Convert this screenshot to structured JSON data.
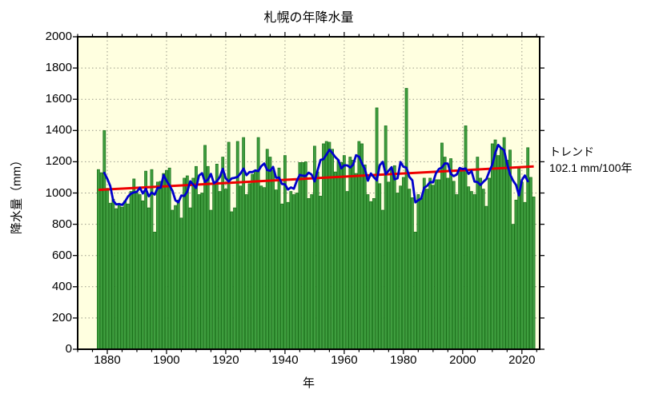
{
  "title": "札幌の年降水量",
  "chart_data": {
    "type": "bar",
    "title": "札幌の年降水量",
    "xlabel": "年",
    "ylabel": "降水量（mm）",
    "xlim": [
      1870,
      2026
    ],
    "ylim": [
      0,
      2000
    ],
    "y_ticks": [
      0,
      200,
      400,
      600,
      800,
      1000,
      1200,
      1400,
      1600,
      1800,
      2000
    ],
    "x_ticks": [
      1880,
      1900,
      1920,
      1940,
      1960,
      1980,
      2000,
      2020
    ],
    "x_minor_step": 5,
    "grid": true,
    "plot_bg": "#ffffe0",
    "x_start_year": 1877,
    "values": [
      1150,
      1130,
      1400,
      1030,
      935,
      960,
      900,
      930,
      910,
      950,
      930,
      1010,
      1090,
      1000,
      990,
      950,
      1140,
      905,
      1150,
      750,
      1070,
      1075,
      1125,
      1145,
      1160,
      890,
      920,
      955,
      840,
      1095,
      1110,
      905,
      1095,
      1170,
      990,
      1000,
      1305,
      1170,
      890,
      1060,
      1185,
      1010,
      1230,
      1025,
      1325,
      880,
      905,
      1330,
      1045,
      1355,
      990,
      1060,
      1120,
      1145,
      1355,
      1045,
      1035,
      1280,
      1230,
      1145,
      1020,
      1160,
      930,
      1240,
      940,
      1010,
      990,
      1000,
      1195,
      1195,
      1200,
      965,
      990,
      1300,
      1135,
      980,
      1315,
      1330,
      1325,
      1280,
      1135,
      1210,
      1195,
      1240,
      1010,
      1230,
      1210,
      1125,
      1330,
      1315,
      1180,
      990,
      945,
      965,
      1545,
      1060,
      890,
      1430,
      1070,
      1150,
      1175,
      1000,
      1045,
      1100,
      1670,
      1025,
      970,
      750,
      990,
      965,
      1095,
      1025,
      1095,
      1050,
      1085,
      1085,
      1320,
      1230,
      1095,
      1220,
      1075,
      990,
      1160,
      1145,
      1430,
      1040,
      1010,
      990,
      1230,
      1095,
      1025,
      915,
      1095,
      1315,
      1340,
      1240,
      1290,
      1355,
      1210,
      1275,
      800,
      955,
      1160,
      1070,
      940,
      1290,
      1100,
      975
    ],
    "series": [
      {
        "name": "annual-precipitation-bars",
        "type": "bar",
        "color": "#3f9e3f",
        "edge_color": "#1a701a"
      },
      {
        "name": "smoothed-5yr-moving-average",
        "type": "line",
        "color": "#0000cc",
        "derived": "moving-average",
        "window": 5
      },
      {
        "name": "linear-trend",
        "type": "line",
        "color": "#ee0000",
        "points": [
          {
            "year": 1877,
            "value": 1020
          },
          {
            "year": 2024,
            "value": 1170
          }
        ]
      }
    ],
    "annotation": {
      "line1": "トレンド",
      "line2": "102.1 mm/100年"
    }
  }
}
